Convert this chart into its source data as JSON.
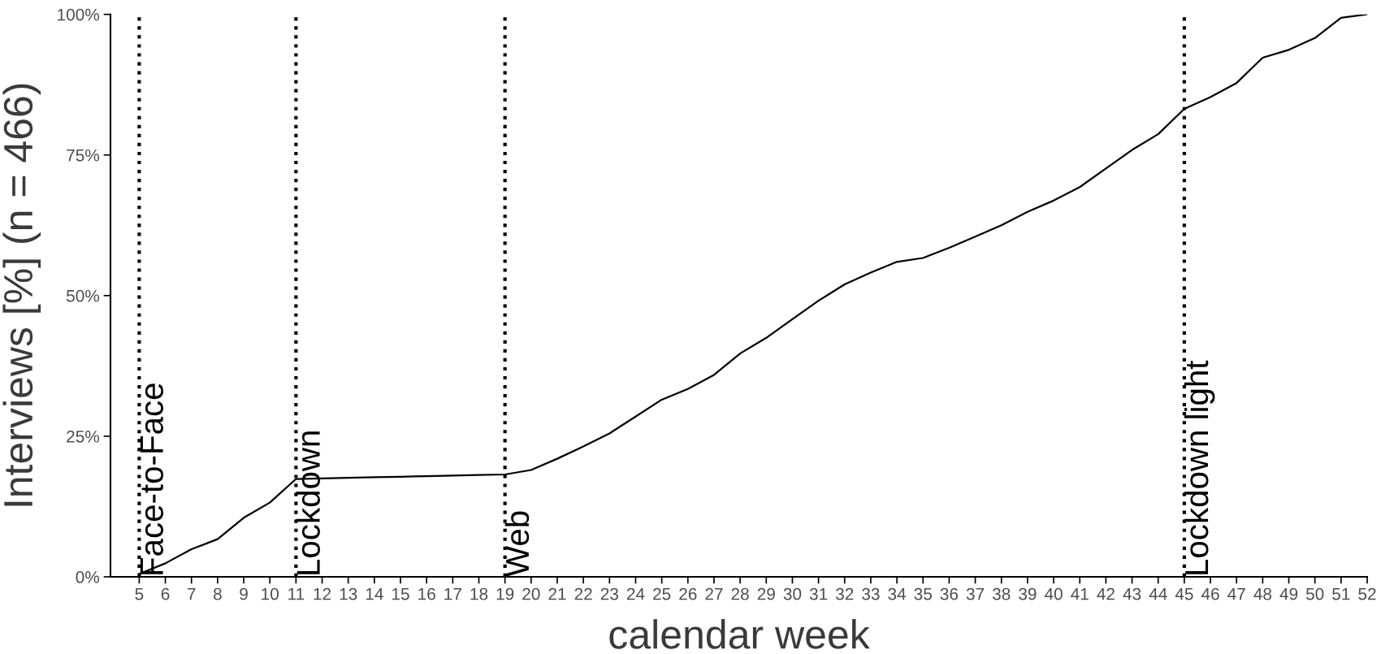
{
  "chart_data": {
    "type": "line",
    "xlabel": "calendar week",
    "ylabel": "Interviews [%] (n = 466)",
    "x": [
      5,
      6,
      7,
      8,
      9,
      10,
      11,
      12,
      13,
      14,
      15,
      16,
      17,
      18,
      19,
      20,
      21,
      22,
      23,
      24,
      25,
      26,
      27,
      28,
      29,
      30,
      31,
      32,
      33,
      34,
      35,
      36,
      37,
      38,
      39,
      40,
      41,
      42,
      43,
      44,
      45,
      46,
      47,
      48,
      49,
      50,
      51,
      52
    ],
    "series": [
      {
        "color": "#000000",
        "values": [
          0.5,
          2.4,
          4.9,
          6.7,
          10.5,
          13.2,
          17.4,
          17.5,
          17.6,
          17.7,
          17.8,
          17.9,
          18.0,
          18.1,
          18.2,
          19.0,
          21.0,
          23.2,
          25.5,
          28.5,
          31.5,
          33.4,
          35.9,
          39.7,
          42.5,
          45.8,
          49.1,
          52.0,
          54.1,
          56.0,
          56.7,
          58.5,
          60.5,
          62.5,
          64.9,
          66.9,
          69.3,
          72.6,
          75.9,
          78.7,
          83.2,
          85.3,
          87.8,
          92.3,
          93.7,
          95.8,
          99.4,
          100
        ]
      }
    ],
    "xlim": [
      3.9,
      52
    ],
    "xticks": [
      5,
      6,
      7,
      8,
      9,
      10,
      11,
      12,
      13,
      14,
      15,
      16,
      17,
      18,
      19,
      20,
      21,
      22,
      23,
      24,
      25,
      26,
      27,
      28,
      29,
      30,
      31,
      32,
      33,
      34,
      35,
      36,
      37,
      38,
      39,
      40,
      41,
      42,
      43,
      44,
      45,
      46,
      47,
      48,
      49,
      50,
      51,
      52
    ],
    "ylim": [
      0,
      100
    ],
    "yticks": [
      {
        "value": 0,
        "label": "0%"
      },
      {
        "value": 25,
        "label": "25%"
      },
      {
        "value": 50,
        "label": "50%"
      },
      {
        "value": 75,
        "label": "75%"
      },
      {
        "value": 100,
        "label": "100%"
      }
    ],
    "ref_lines": [
      {
        "axis": "x",
        "value": 5,
        "label": "Face-to-Face",
        "color": "#000000",
        "line_style": "dotted"
      },
      {
        "axis": "x",
        "value": 11,
        "label": "Lockdown",
        "color": "#000000",
        "line_style": "dotted"
      },
      {
        "axis": "x",
        "value": 19,
        "label": "Web",
        "color": "#000000",
        "line_style": "dotted"
      },
      {
        "axis": "x",
        "value": 45,
        "label": "Lockdown light",
        "color": "#000000",
        "line_style": "dotted"
      }
    ],
    "grid": false,
    "marker": "none",
    "line_style": "solid"
  }
}
